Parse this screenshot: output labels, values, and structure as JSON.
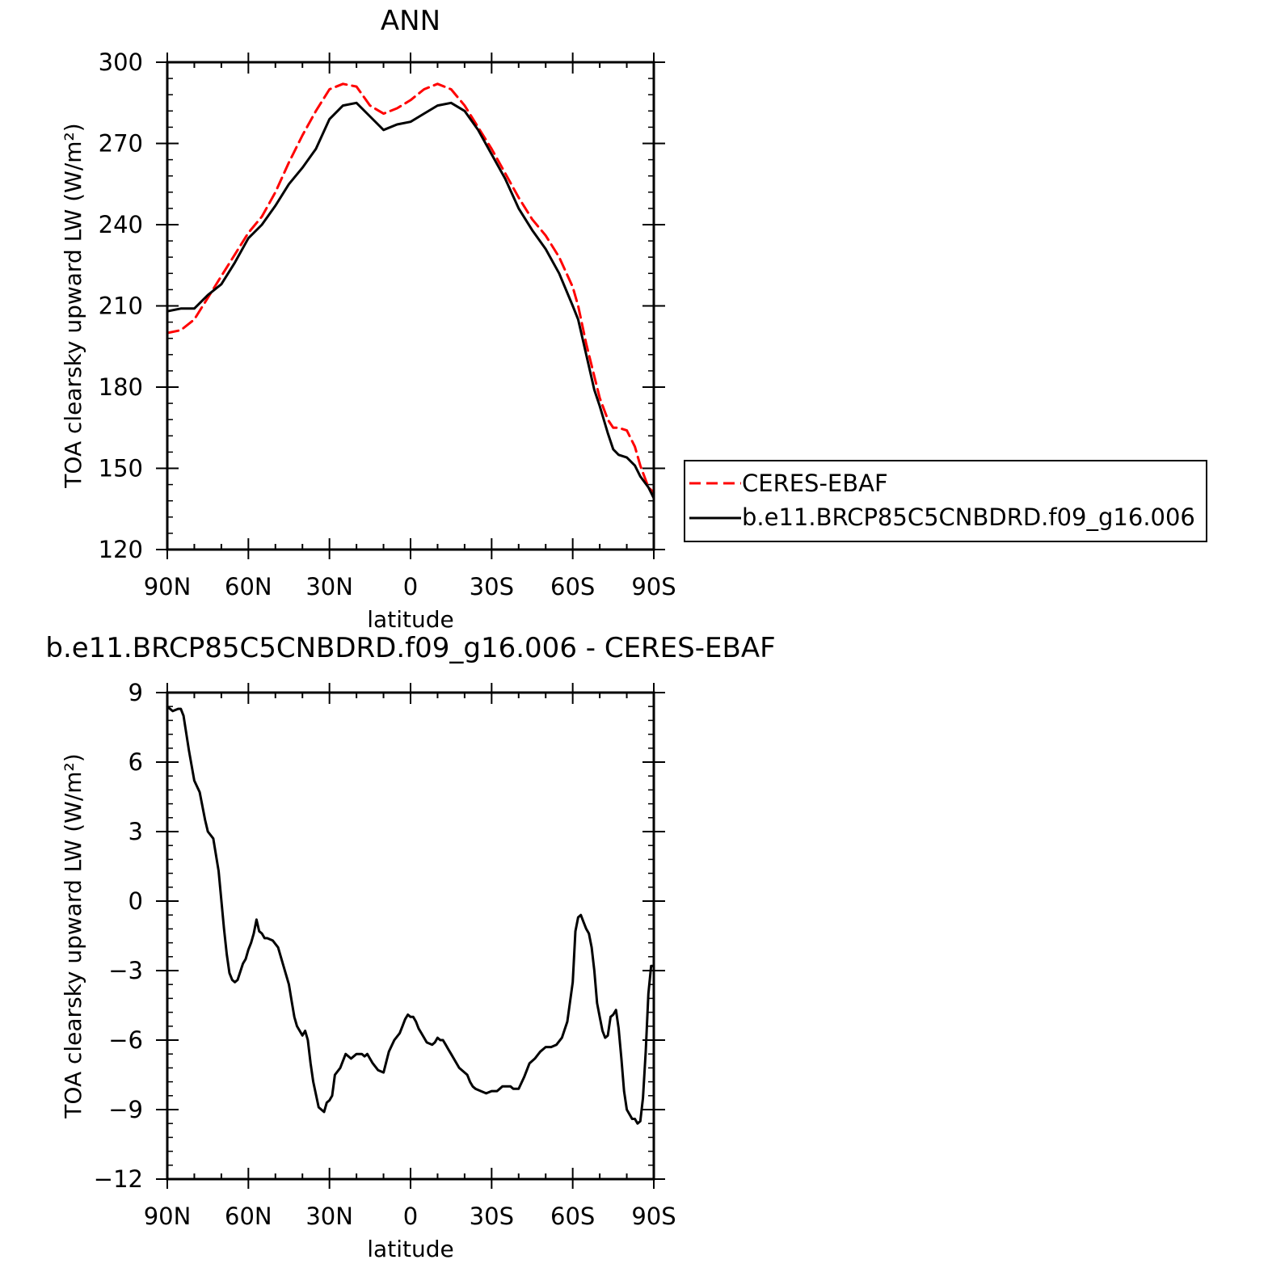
{
  "chart_data": [
    {
      "type": "line",
      "title": "ANN",
      "xlabel": "latitude",
      "ylabel": "TOA clearsky upward LW (W/m²)",
      "xlim": [
        90,
        -90
      ],
      "ylim": [
        120,
        300
      ],
      "yticks": [
        120,
        150,
        180,
        210,
        240,
        270,
        300
      ],
      "xticks": [
        90,
        60,
        30,
        0,
        -30,
        -60,
        -90
      ],
      "xtick_labels": [
        "90N",
        "60N",
        "30N",
        "0",
        "30S",
        "60S",
        "90S"
      ],
      "legend_position": "right",
      "series": [
        {
          "name": "CERES-EBAF",
          "color": "#ff0000",
          "dash": "dashed",
          "x": [
            90,
            85,
            80,
            75,
            70,
            65,
            60,
            55,
            50,
            45,
            40,
            35,
            30,
            25,
            20,
            15,
            10,
            5,
            0,
            -5,
            -10,
            -15,
            -20,
            -25,
            -30,
            -35,
            -40,
            -45,
            -50,
            -55,
            -60,
            -62,
            -65,
            -68,
            -70,
            -73,
            -75,
            -77,
            -80,
            -83,
            -85,
            -88,
            -90
          ],
          "y": [
            200,
            201,
            205,
            213,
            221,
            229,
            237,
            243,
            252,
            263,
            273,
            282,
            290,
            292,
            291,
            284,
            281,
            283,
            286,
            290,
            292,
            290,
            284,
            276,
            268,
            259,
            250,
            242,
            236,
            228,
            217,
            210,
            196,
            184,
            176,
            168,
            165,
            165,
            164,
            158,
            151,
            143,
            141
          ]
        },
        {
          "name": "b.e11.BRCP85C5CNBDRD.f09_g16.006",
          "color": "#000000",
          "dash": "solid",
          "x": [
            90,
            85,
            80,
            75,
            70,
            65,
            60,
            55,
            50,
            45,
            40,
            35,
            30,
            25,
            20,
            15,
            10,
            5,
            0,
            -5,
            -10,
            -15,
            -20,
            -25,
            -30,
            -35,
            -40,
            -45,
            -50,
            -55,
            -60,
            -62,
            -65,
            -68,
            -70,
            -73,
            -75,
            -77,
            -80,
            -83,
            -85,
            -88,
            -90
          ],
          "y": [
            208,
            209,
            209,
            214,
            218,
            226,
            235,
            240,
            247,
            255,
            261,
            268,
            279,
            284,
            285,
            280,
            275,
            277,
            278,
            281,
            284,
            285,
            282,
            275,
            266,
            257,
            246,
            238,
            231,
            222,
            210,
            205,
            192,
            179,
            173,
            163,
            157,
            155,
            154,
            151,
            147,
            143,
            139
          ]
        }
      ]
    },
    {
      "type": "line",
      "title": "b.e11.BRCP85C5CNBDRD.f09_g16.006 - CERES-EBAF",
      "xlabel": "latitude",
      "ylabel": "TOA clearsky upward LW (W/m²)",
      "xlim": [
        90,
        -90
      ],
      "ylim": [
        -12,
        9
      ],
      "yticks": [
        -12,
        -9,
        -6,
        -3,
        0,
        3,
        6,
        9
      ],
      "ytick_labels": [
        "−12",
        "−9",
        "−6",
        "−3",
        "0",
        "3",
        "6",
        "9"
      ],
      "xticks": [
        90,
        60,
        30,
        0,
        -30,
        -60,
        -90
      ],
      "xtick_labels": [
        "90N",
        "60N",
        "30N",
        "0",
        "30S",
        "60S",
        "90S"
      ],
      "series": [
        {
          "color": "#000000",
          "dash": "solid",
          "x": [
            90,
            88,
            86,
            85,
            84,
            82,
            80,
            78,
            76,
            75,
            73,
            71,
            69,
            68,
            67,
            66,
            65,
            64,
            62,
            61,
            60,
            59,
            58,
            57,
            56,
            55,
            54,
            53,
            51,
            49,
            47,
            45,
            44,
            43,
            42,
            40,
            39,
            38,
            37,
            36,
            34,
            32,
            31,
            30,
            29,
            28,
            26,
            24,
            22,
            20,
            18,
            17,
            16,
            14,
            12,
            10,
            8,
            6,
            4,
            3,
            2,
            1,
            0,
            -1,
            -2,
            -3,
            -4,
            -6,
            -8,
            -9,
            -10,
            -11,
            -12,
            -13,
            -14,
            -15,
            -16,
            -18,
            -20,
            -21,
            -22,
            -23,
            -24,
            -26,
            -28,
            -30,
            -32,
            -33,
            -34,
            -35,
            -36,
            -37,
            -38,
            -40,
            -42,
            -44,
            -46,
            -48,
            -50,
            -52,
            -54,
            -56,
            -58,
            -60,
            -61,
            -62,
            -63,
            -64,
            -65,
            -66,
            -67,
            -68,
            -69,
            -70,
            -71,
            -72,
            -73,
            -74,
            -75,
            -76,
            -77,
            -78,
            -79,
            -80,
            -81,
            -82,
            -83,
            -84,
            -85,
            -86,
            -87,
            -88,
            -89,
            -90
          ],
          "y": [
            8.4,
            8.2,
            8.3,
            8.3,
            8.0,
            6.5,
            5.2,
            4.7,
            3.5,
            3.0,
            2.7,
            1.3,
            -1.2,
            -2.3,
            -3.1,
            -3.4,
            -3.5,
            -3.4,
            -2.7,
            -2.5,
            -2.1,
            -1.8,
            -1.4,
            -0.8,
            -1.3,
            -1.4,
            -1.6,
            -1.6,
            -1.7,
            -2.0,
            -2.8,
            -3.6,
            -4.3,
            -5.0,
            -5.4,
            -5.8,
            -5.6,
            -6.0,
            -7.0,
            -7.8,
            -8.9,
            -9.1,
            -8.7,
            -8.6,
            -8.4,
            -7.5,
            -7.2,
            -6.6,
            -6.8,
            -6.6,
            -6.6,
            -6.7,
            -6.6,
            -7.0,
            -7.3,
            -7.4,
            -6.5,
            -6.0,
            -5.7,
            -5.4,
            -5.1,
            -4.9,
            -5.0,
            -5.0,
            -5.2,
            -5.5,
            -5.7,
            -6.1,
            -6.2,
            -6.1,
            -5.9,
            -6.0,
            -6.0,
            -6.2,
            -6.4,
            -6.6,
            -6.8,
            -7.2,
            -7.4,
            -7.5,
            -7.8,
            -8.0,
            -8.1,
            -8.2,
            -8.3,
            -8.2,
            -8.2,
            -8.1,
            -8.0,
            -8.0,
            -8.0,
            -8.0,
            -8.1,
            -8.1,
            -7.6,
            -7.0,
            -6.8,
            -6.5,
            -6.3,
            -6.3,
            -6.2,
            -5.9,
            -5.2,
            -3.5,
            -1.3,
            -0.7,
            -0.6,
            -0.9,
            -1.2,
            -1.4,
            -2.0,
            -3.0,
            -4.4,
            -5.0,
            -5.6,
            -5.9,
            -5.8,
            -5.0,
            -4.9,
            -4.7,
            -5.5,
            -6.8,
            -8.2,
            -9.0,
            -9.2,
            -9.4,
            -9.4,
            -9.6,
            -9.5,
            -8.5,
            -6.5,
            -4.0,
            -2.8,
            -2.8
          ]
        }
      ]
    }
  ]
}
